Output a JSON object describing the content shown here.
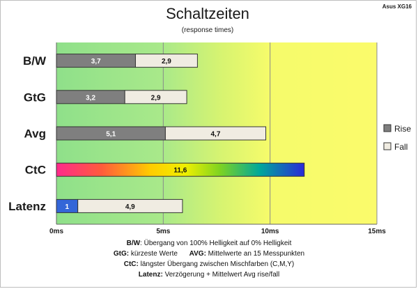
{
  "chart_data": {
    "type": "bar",
    "orientation": "horizontal",
    "stacked": true,
    "title": "Schaltzeiten",
    "subtitle": "(response times)",
    "corner_label": "Asus XG16",
    "categories": [
      "B/W",
      "GtG",
      "Avg",
      "CtC",
      "Latenz"
    ],
    "series": [
      {
        "name": "Rise",
        "values": [
          3.7,
          3.2,
          5.1,
          null,
          1
        ],
        "color": "#7f7f7f"
      },
      {
        "name": "Fall",
        "values": [
          2.9,
          2.9,
          4.7,
          null,
          4.9
        ],
        "color": "#f0ece2"
      },
      {
        "name": "",
        "values": [
          null,
          null,
          null,
          11.6,
          null
        ],
        "color": "gradient"
      }
    ],
    "x_ticks": [
      "0ms",
      "5ms",
      "10ms",
      "15ms"
    ],
    "x_tick_values": [
      0,
      5,
      10,
      15
    ],
    "xlim": [
      0,
      15
    ],
    "grid": true,
    "legend_position": "right",
    "legend": [
      {
        "label": "Rise",
        "color": "#7f7f7f"
      },
      {
        "label": "Fall",
        "color": "#f0ece2"
      }
    ],
    "bar_labels": [
      [
        "3,7",
        "2,9"
      ],
      [
        "3,2",
        "2,9"
      ],
      [
        "5,1",
        "4,7"
      ],
      [
        "11,6"
      ],
      [
        "1",
        "4,9"
      ]
    ]
  },
  "notes": {
    "bw_key": "B/W",
    "bw_text": ": Übergang von 100% Helligkeit auf 0% Helligkeit",
    "gtg_key": "GtG:",
    "gtg_text": " kürzeste Werte",
    "avg_key": "AVG:",
    "avg_text": " Mittelwerte an 15 Messpunkten",
    "ctc_key": "CtC:",
    "ctc_text": " längster Übergang zwischen Mischfarben (C,M,Y)",
    "lat_key": "Latenz:",
    "lat_text": " Verzögerung + Mittelwert Avg rise/fall"
  }
}
